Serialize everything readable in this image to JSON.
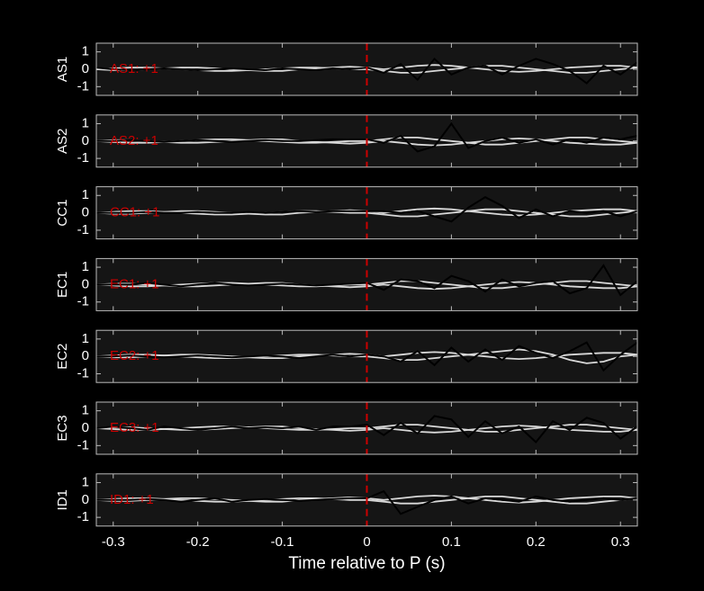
{
  "chart_data": [
    {
      "type": "line",
      "y_label": "AS1",
      "annotation": "AS1: +1",
      "marker_x": 0,
      "marker_color": "#cc0000",
      "xlim": [
        -0.32,
        0.32
      ],
      "ylim": [
        -1.5,
        1.5
      ],
      "yticks": [
        -1,
        0,
        1
      ],
      "x": [
        -0.32,
        -0.3,
        -0.28,
        -0.26,
        -0.24,
        -0.22,
        -0.2,
        -0.18,
        -0.16,
        -0.14,
        -0.12,
        -0.1,
        -0.08,
        -0.06,
        -0.04,
        -0.02,
        0,
        0.02,
        0.04,
        0.06,
        0.08,
        0.1,
        0.12,
        0.14,
        0.16,
        0.18,
        0.2,
        0.22,
        0.24,
        0.26,
        0.28,
        0.3,
        0.32
      ],
      "series": [
        {
          "color": "#d9d9d9",
          "values": [
            0,
            0.05,
            0.1,
            0.1,
            0.05,
            0,
            -0.05,
            -0.1,
            -0.1,
            -0.05,
            0,
            0.05,
            0.1,
            0.1,
            0.05,
            0,
            0,
            -0.1,
            -0.2,
            -0.2,
            -0.1,
            0,
            0.1,
            0.2,
            0.2,
            0.1,
            0,
            -0.1,
            -0.2,
            -0.2,
            -0.1,
            0,
            0.1
          ]
        },
        {
          "color": "#d9d9d9",
          "values": [
            0,
            -0.05,
            -0.05,
            0,
            0.05,
            0.1,
            0.1,
            0.05,
            0,
            -0.05,
            -0.1,
            -0.1,
            0,
            0.05,
            0.1,
            0.15,
            0.1,
            0,
            0.1,
            0.2,
            0.25,
            0.2,
            0.1,
            0,
            -0.1,
            -0.15,
            -0.1,
            0,
            0.1,
            0.15,
            0.2,
            0.2,
            0.1
          ]
        },
        {
          "color": "#000000",
          "values": [
            0.1,
            0,
            -0.05,
            0,
            0.05,
            0,
            -0.05,
            0,
            0.05,
            0,
            -0.05,
            0.05,
            0,
            -0.05,
            0.05,
            0,
            0.1,
            -0.2,
            0.3,
            -0.6,
            0.6,
            -0.3,
            0.1,
            0.2,
            -0.3,
            0.2,
            0.6,
            0.3,
            -0.1,
            -0.8,
            0.2,
            -0.3,
            0.4
          ]
        }
      ]
    },
    {
      "type": "line",
      "y_label": "AS2",
      "annotation": "AS2: +1",
      "marker_x": 0,
      "marker_color": "#cc0000",
      "xlim": [
        -0.32,
        0.32
      ],
      "ylim": [
        -1.5,
        1.5
      ],
      "yticks": [
        -1,
        0,
        1
      ],
      "x": [
        -0.32,
        -0.3,
        -0.28,
        -0.26,
        -0.24,
        -0.22,
        -0.2,
        -0.18,
        -0.16,
        -0.14,
        -0.12,
        -0.1,
        -0.08,
        -0.06,
        -0.04,
        -0.02,
        0,
        0.02,
        0.04,
        0.06,
        0.08,
        0.1,
        0.12,
        0.14,
        0.16,
        0.18,
        0.2,
        0.22,
        0.24,
        0.26,
        0.28,
        0.3,
        0.32
      ],
      "series": [
        {
          "color": "#d9d9d9",
          "values": [
            0,
            -0.05,
            -0.1,
            -0.1,
            -0.05,
            0,
            0.05,
            0.1,
            0.1,
            0.05,
            0,
            -0.05,
            -0.1,
            -0.1,
            -0.05,
            0,
            0,
            0.1,
            0.2,
            0.2,
            0.1,
            0,
            -0.1,
            -0.2,
            -0.2,
            -0.1,
            0,
            0.1,
            0.2,
            0.2,
            0.1,
            0,
            -0.1
          ]
        },
        {
          "color": "#d9d9d9",
          "values": [
            0,
            0.05,
            0.05,
            0,
            -0.05,
            -0.1,
            -0.1,
            -0.05,
            0,
            0.05,
            0.1,
            0.1,
            0,
            -0.05,
            -0.1,
            -0.15,
            -0.1,
            0,
            -0.1,
            -0.2,
            -0.25,
            -0.2,
            -0.1,
            0,
            0.1,
            0.15,
            0.1,
            0,
            -0.1,
            -0.15,
            -0.2,
            -0.2,
            -0.1
          ]
        },
        {
          "color": "#000000",
          "values": [
            0,
            0,
            0.05,
            0,
            -0.05,
            0,
            0.05,
            0,
            -0.05,
            0,
            0.05,
            0,
            0,
            0.05,
            0.1,
            0.1,
            0.1,
            -0.1,
            0.3,
            -0.6,
            -0.3,
            1.0,
            -0.4,
            0,
            0.2,
            -0.1,
            0.1,
            -0.2,
            0.1,
            -0.1,
            0.2,
            0.1,
            0.3
          ]
        }
      ]
    },
    {
      "type": "line",
      "y_label": "CC1",
      "annotation": "CC1: +1",
      "marker_x": 0,
      "marker_color": "#cc0000",
      "xlim": [
        -0.32,
        0.32
      ],
      "ylim": [
        -1.5,
        1.5
      ],
      "yticks": [
        -1,
        0,
        1
      ],
      "x": [
        -0.32,
        -0.3,
        -0.28,
        -0.26,
        -0.24,
        -0.22,
        -0.2,
        -0.18,
        -0.16,
        -0.14,
        -0.12,
        -0.1,
        -0.08,
        -0.06,
        -0.04,
        -0.02,
        0,
        0.02,
        0.04,
        0.06,
        0.08,
        0.1,
        0.12,
        0.14,
        0.16,
        0.18,
        0.2,
        0.22,
        0.24,
        0.26,
        0.28,
        0.3,
        0.32
      ],
      "series": [
        {
          "color": "#d9d9d9",
          "values": [
            0,
            0.05,
            0.1,
            0.1,
            0.05,
            0,
            -0.05,
            -0.1,
            -0.1,
            -0.05,
            0,
            0.05,
            0.1,
            0.1,
            0.05,
            0,
            0,
            -0.1,
            -0.2,
            -0.2,
            -0.1,
            0,
            0.1,
            0.2,
            0.2,
            0.1,
            0,
            -0.1,
            -0.2,
            -0.2,
            -0.1,
            0,
            0.1
          ]
        },
        {
          "color": "#d9d9d9",
          "values": [
            0,
            -0.05,
            -0.05,
            0,
            0.05,
            0.1,
            0.1,
            0.05,
            0,
            -0.05,
            -0.1,
            -0.1,
            0,
            0.05,
            0.1,
            0.15,
            0.1,
            0,
            0.1,
            0.2,
            0.25,
            0.2,
            0.1,
            0,
            -0.1,
            -0.15,
            -0.1,
            0,
            0.1,
            0.15,
            0.2,
            0.2,
            0.1
          ]
        },
        {
          "color": "#000000",
          "values": [
            0,
            0,
            0,
            0.05,
            0,
            0,
            0.05,
            0,
            0,
            0.05,
            0,
            0.05,
            0.1,
            0.05,
            0.1,
            0.1,
            0.1,
            0.1,
            0,
            0.1,
            -0.2,
            -0.5,
            0.3,
            0.9,
            0.4,
            -0.3,
            0.2,
            -0.2,
            0.1,
            0,
            0.1,
            -0.2,
            0.1
          ]
        }
      ]
    },
    {
      "type": "line",
      "y_label": "EC1",
      "annotation": "EC1: +1",
      "marker_x": 0,
      "marker_color": "#cc0000",
      "xlim": [
        -0.32,
        0.32
      ],
      "ylim": [
        -1.5,
        1.5
      ],
      "yticks": [
        -1,
        0,
        1
      ],
      "x": [
        -0.32,
        -0.3,
        -0.28,
        -0.26,
        -0.24,
        -0.22,
        -0.2,
        -0.18,
        -0.16,
        -0.14,
        -0.12,
        -0.1,
        -0.08,
        -0.06,
        -0.04,
        -0.02,
        0,
        0.02,
        0.04,
        0.06,
        0.08,
        0.1,
        0.12,
        0.14,
        0.16,
        0.18,
        0.2,
        0.22,
        0.24,
        0.26,
        0.28,
        0.3,
        0.32
      ],
      "series": [
        {
          "color": "#d9d9d9",
          "values": [
            0,
            -0.05,
            -0.1,
            -0.1,
            -0.05,
            0,
            0.05,
            0.1,
            0.1,
            0.05,
            0,
            -0.05,
            -0.1,
            -0.1,
            -0.05,
            0,
            0,
            0.1,
            0.2,
            0.2,
            0.1,
            0,
            -0.1,
            -0.2,
            -0.2,
            -0.1,
            0,
            0.1,
            0.2,
            0.2,
            0.1,
            0,
            -0.1
          ]
        },
        {
          "color": "#d9d9d9",
          "values": [
            0,
            0.05,
            0.05,
            0,
            -0.05,
            -0.1,
            -0.1,
            -0.05,
            0,
            0.05,
            0.1,
            0.1,
            0,
            -0.05,
            -0.1,
            -0.15,
            -0.1,
            0,
            -0.1,
            -0.2,
            -0.25,
            -0.2,
            -0.1,
            0,
            0.1,
            0.15,
            0.1,
            0,
            -0.1,
            -0.15,
            -0.2,
            -0.2,
            -0.1
          ]
        },
        {
          "color": "#000000",
          "values": [
            0,
            0,
            0,
            0.1,
            0,
            -0.1,
            0,
            0.1,
            0,
            -0.05,
            0,
            0.05,
            0,
            -0.05,
            0,
            0.05,
            0.1,
            -0.3,
            0.3,
            0.2,
            -0.2,
            0.5,
            0.2,
            -0.4,
            0.3,
            -0.1,
            0.1,
            0.2,
            -0.5,
            -0.2,
            1.1,
            -0.6,
            0.2
          ]
        }
      ]
    },
    {
      "type": "line",
      "y_label": "EC2",
      "annotation": "EC2: +1",
      "marker_x": 0,
      "marker_color": "#cc0000",
      "xlim": [
        -0.32,
        0.32
      ],
      "ylim": [
        -1.5,
        1.5
      ],
      "yticks": [
        -1,
        0,
        1
      ],
      "x": [
        -0.32,
        -0.3,
        -0.28,
        -0.26,
        -0.24,
        -0.22,
        -0.2,
        -0.18,
        -0.16,
        -0.14,
        -0.12,
        -0.1,
        -0.08,
        -0.06,
        -0.04,
        -0.02,
        0,
        0.02,
        0.04,
        0.06,
        0.08,
        0.1,
        0.12,
        0.14,
        0.16,
        0.18,
        0.2,
        0.22,
        0.24,
        0.26,
        0.28,
        0.3,
        0.32
      ],
      "series": [
        {
          "color": "#d9d9d9",
          "values": [
            0,
            0.05,
            0.1,
            0.1,
            0.05,
            0,
            -0.05,
            -0.1,
            -0.1,
            -0.05,
            0,
            0.05,
            0.1,
            0.1,
            0.05,
            0,
            0,
            -0.1,
            -0.2,
            -0.2,
            -0.1,
            0,
            0.1,
            0.2,
            0.3,
            0.4,
            0.3,
            0.1,
            -0.2,
            -0.4,
            -0.3,
            0,
            0.1
          ]
        },
        {
          "color": "#d9d9d9",
          "values": [
            0,
            -0.05,
            -0.05,
            0,
            0.05,
            0.1,
            0.1,
            0.05,
            0,
            -0.05,
            -0.1,
            -0.1,
            0,
            0.05,
            0.1,
            0.15,
            0.1,
            0,
            0.1,
            0.2,
            0.25,
            0.2,
            0.1,
            0,
            -0.1,
            -0.15,
            -0.1,
            0,
            0.1,
            0.15,
            0.2,
            0.2,
            0.1
          ]
        },
        {
          "color": "#000000",
          "values": [
            0,
            0,
            0.05,
            0,
            -0.05,
            0,
            0.05,
            0,
            -0.05,
            0,
            0.05,
            0,
            -0.1,
            0,
            0.1,
            0,
            0.1,
            0,
            -0.3,
            0.3,
            -0.5,
            0.5,
            -0.3,
            0.4,
            -0.2,
            0.6,
            0.2,
            -0.1,
            0.3,
            0.8,
            -0.8,
            0.1,
            0.8
          ]
        }
      ]
    },
    {
      "type": "line",
      "y_label": "EC3",
      "annotation": "EC3: +1",
      "marker_x": 0,
      "marker_color": "#cc0000",
      "xlim": [
        -0.32,
        0.32
      ],
      "ylim": [
        -1.5,
        1.5
      ],
      "yticks": [
        -1,
        0,
        1
      ],
      "x": [
        -0.32,
        -0.3,
        -0.28,
        -0.26,
        -0.24,
        -0.22,
        -0.2,
        -0.18,
        -0.16,
        -0.14,
        -0.12,
        -0.1,
        -0.08,
        -0.06,
        -0.04,
        -0.02,
        0,
        0.02,
        0.04,
        0.06,
        0.08,
        0.1,
        0.12,
        0.14,
        0.16,
        0.18,
        0.2,
        0.22,
        0.24,
        0.26,
        0.28,
        0.3,
        0.32
      ],
      "series": [
        {
          "color": "#d9d9d9",
          "values": [
            0,
            -0.05,
            -0.1,
            -0.1,
            -0.05,
            0,
            0.05,
            0.1,
            0.1,
            0.05,
            0,
            -0.05,
            -0.1,
            -0.1,
            -0.05,
            0,
            0,
            0.1,
            0.2,
            0.2,
            0.1,
            0,
            -0.1,
            -0.2,
            -0.2,
            -0.1,
            0,
            0.1,
            0.2,
            0.2,
            0.1,
            0,
            -0.1
          ]
        },
        {
          "color": "#d9d9d9",
          "values": [
            0,
            0.05,
            0.05,
            0,
            -0.05,
            -0.1,
            -0.1,
            -0.05,
            0,
            0.05,
            0.1,
            0.1,
            0,
            -0.05,
            -0.1,
            -0.15,
            -0.1,
            0,
            -0.1,
            -0.2,
            -0.25,
            -0.2,
            -0.1,
            0,
            0.1,
            0.15,
            0.1,
            0,
            -0.1,
            -0.15,
            -0.2,
            -0.2,
            -0.1
          ]
        },
        {
          "color": "#000000",
          "values": [
            0,
            0.1,
            0,
            -0.1,
            0.1,
            0,
            -0.1,
            0,
            0.1,
            0,
            0.05,
            0,
            0.1,
            -0.1,
            0.1,
            0.1,
            0.2,
            -0.4,
            0.3,
            -0.3,
            0.7,
            0.5,
            -0.5,
            0.4,
            -0.3,
            0.1,
            -0.8,
            0.4,
            -0.1,
            0.6,
            0.3,
            -0.6,
            0.1
          ]
        }
      ]
    },
    {
      "type": "line",
      "y_label": "ID1",
      "annotation": "ID1: +1",
      "marker_x": 0,
      "marker_color": "#cc0000",
      "x_label": "Time relative to P (s)",
      "xlim": [
        -0.32,
        0.32
      ],
      "xticks": [
        -0.3,
        -0.2,
        -0.1,
        0,
        0.1,
        0.2,
        0.3
      ],
      "ylim": [
        -1.5,
        1.5
      ],
      "yticks": [
        -1,
        0,
        1
      ],
      "x": [
        -0.32,
        -0.3,
        -0.28,
        -0.26,
        -0.24,
        -0.22,
        -0.2,
        -0.18,
        -0.16,
        -0.14,
        -0.12,
        -0.1,
        -0.08,
        -0.06,
        -0.04,
        -0.02,
        0,
        0.02,
        0.04,
        0.06,
        0.08,
        0.1,
        0.12,
        0.14,
        0.16,
        0.18,
        0.2,
        0.22,
        0.24,
        0.26,
        0.28,
        0.3,
        0.32
      ],
      "series": [
        {
          "color": "#d9d9d9",
          "values": [
            0,
            0.05,
            0.1,
            0.1,
            0.05,
            0,
            -0.05,
            -0.1,
            -0.1,
            -0.05,
            0,
            0.05,
            0.1,
            0.1,
            0.05,
            0,
            0,
            -0.1,
            -0.2,
            -0.2,
            -0.1,
            0,
            0.1,
            0.2,
            0.2,
            0.1,
            0,
            -0.1,
            -0.2,
            -0.2,
            -0.1,
            0,
            0.1
          ]
        },
        {
          "color": "#d9d9d9",
          "values": [
            0,
            -0.05,
            -0.05,
            0,
            0.05,
            0.1,
            0.1,
            0.05,
            0,
            -0.05,
            -0.1,
            -0.1,
            0,
            0.05,
            0.1,
            0.15,
            0.1,
            0,
            0.1,
            0.2,
            0.25,
            0.2,
            0.1,
            0,
            -0.1,
            -0.15,
            -0.1,
            0,
            0.1,
            0.15,
            0.2,
            0.2,
            0.1
          ]
        },
        {
          "color": "#000000",
          "values": [
            0,
            0,
            0,
            0.05,
            0,
            -0.1,
            0,
            0.1,
            -0.1,
            0,
            0.05,
            0,
            -0.05,
            0,
            0.05,
            0.1,
            0.1,
            0.5,
            -0.8,
            -0.4,
            0,
            0.2,
            -0.2,
            0.1,
            0,
            -0.1,
            0.2,
            0,
            -0.1,
            0,
            0.1,
            0,
            0.1
          ]
        }
      ]
    }
  ]
}
